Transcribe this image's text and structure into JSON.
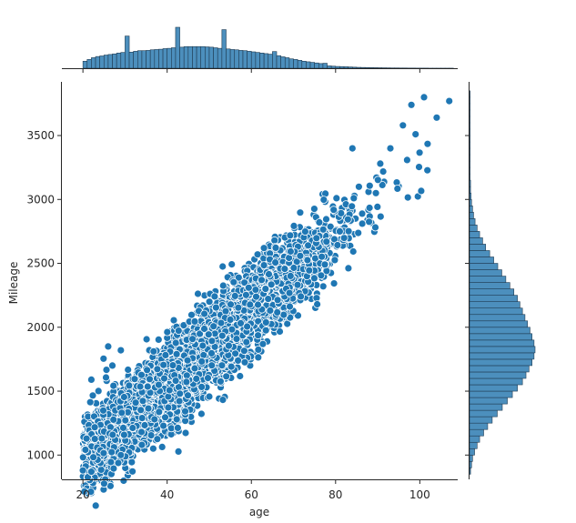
{
  "chart_data": {
    "type": "scatter",
    "kind": "jointplot",
    "xlabel": "age",
    "ylabel": "Mileage",
    "xlim": [
      15,
      109
    ],
    "ylim": [
      810,
      3920
    ],
    "xticks": [
      20,
      40,
      60,
      80,
      100
    ],
    "yticks": [
      1000,
      1500,
      2000,
      2500,
      3000,
      3500
    ],
    "grid": false,
    "legend": "none",
    "colors": {
      "points": "#1f77b4",
      "point_edge": "#ffffff",
      "hist_fill": "#4c8fbd",
      "hist_edge": "#1f3b52",
      "axis": "#262626"
    },
    "scatter_trend": {
      "slope": 29.2,
      "intercept": 385,
      "residual_spread": 150,
      "x_min": 20,
      "x_max": 107,
      "approx_point_count": 6000
    },
    "scatter_outliers": [
      {
        "x": 101,
        "y": 3800
      },
      {
        "x": 107,
        "y": 3770
      },
      {
        "x": 98,
        "y": 3740
      },
      {
        "x": 104,
        "y": 3640
      },
      {
        "x": 99,
        "y": 3510
      },
      {
        "x": 96,
        "y": 3580
      },
      {
        "x": 93,
        "y": 3400
      },
      {
        "x": 20,
        "y": 880
      },
      {
        "x": 22,
        "y": 870
      },
      {
        "x": 27,
        "y": 1700
      },
      {
        "x": 29,
        "y": 1820
      },
      {
        "x": 26,
        "y": 1850
      },
      {
        "x": 34,
        "y": 1080
      },
      {
        "x": 37,
        "y": 1280
      },
      {
        "x": 29,
        "y": 1000
      },
      {
        "x": 22,
        "y": 1590
      },
      {
        "x": 55,
        "y": 2060
      },
      {
        "x": 84,
        "y": 3400
      },
      {
        "x": 63,
        "y": 2620
      },
      {
        "x": 81,
        "y": 2750
      }
    ],
    "x_histogram": {
      "bin_start": 20,
      "bin_width": 1,
      "counts": [
        120,
        150,
        180,
        200,
        210,
        225,
        235,
        245,
        260,
        270,
        550,
        275,
        290,
        300,
        300,
        305,
        315,
        320,
        325,
        335,
        340,
        350,
        700,
        360,
        370,
        370,
        370,
        370,
        370,
        365,
        360,
        350,
        340,
        660,
        330,
        320,
        315,
        305,
        300,
        290,
        280,
        270,
        260,
        250,
        240,
        285,
        215,
        195,
        180,
        160,
        150,
        135,
        120,
        110,
        100,
        90,
        80,
        85,
        40,
        35,
        30,
        28,
        25,
        22,
        18,
        15,
        13,
        12,
        10,
        9,
        8,
        7,
        6,
        5,
        5,
        4,
        4,
        3,
        3,
        2,
        2,
        2,
        1,
        1,
        1,
        1,
        1,
        1
      ]
    },
    "y_histogram": {
      "bin_start": 850,
      "bin_width": 50,
      "counts": [
        2,
        4,
        6,
        10,
        15,
        20,
        28,
        36,
        45,
        55,
        65,
        75,
        85,
        95,
        105,
        112,
        118,
        124,
        128,
        130,
        128,
        124,
        120,
        115,
        110,
        105,
        100,
        95,
        88,
        80,
        72,
        64,
        56,
        48,
        40,
        32,
        26,
        20,
        15,
        11,
        8,
        6,
        4,
        3,
        2,
        2,
        1,
        1,
        1,
        1,
        1,
        1,
        1,
        1,
        1,
        1,
        1,
        1,
        1,
        1
      ]
    }
  }
}
